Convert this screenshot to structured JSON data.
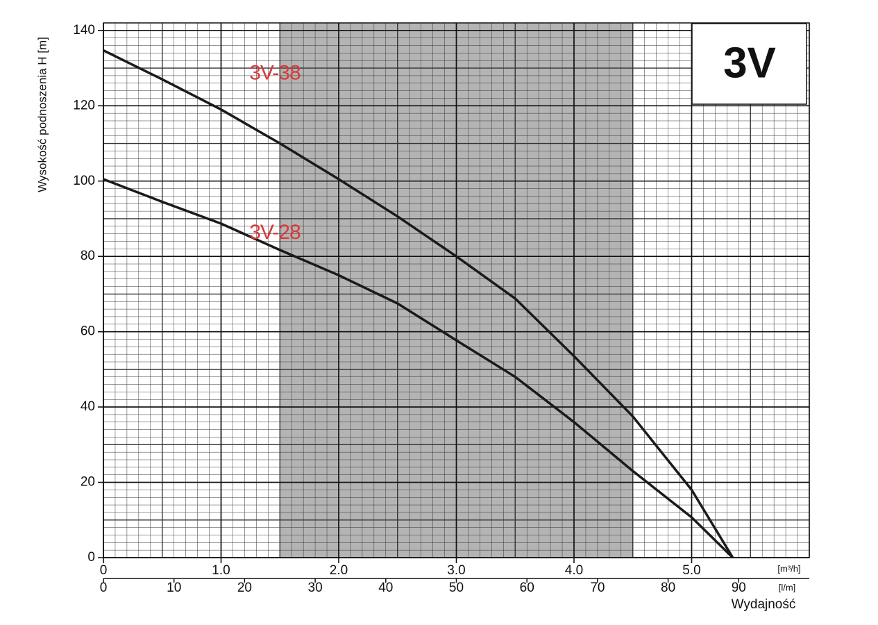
{
  "chart_data": {
    "type": "line",
    "title": "3V",
    "ylabel": "Wysokość podnoszenia H [m]",
    "xlabel": "Wydajność",
    "xunit": "[m³/h]",
    "x2unit": "[l/m]",
    "xlim": [
      0,
      6
    ],
    "ylim": [
      0,
      142
    ],
    "x2lim": [
      0,
      100
    ],
    "xticks": [
      0,
      {
        "value": 1,
        "label": "1.0"
      },
      {
        "value": 2,
        "label": "2.0"
      },
      {
        "value": 3,
        "label": "3.0"
      },
      {
        "value": 4,
        "label": "4.0"
      },
      {
        "value": 5,
        "label": "5.0"
      }
    ],
    "x2ticks": [
      0,
      10,
      20,
      30,
      40,
      50,
      60,
      70,
      80,
      90
    ],
    "yticks": [
      0,
      20,
      40,
      60,
      80,
      100,
      120,
      140
    ],
    "highlight_range": [
      1.5,
      4.5
    ],
    "highlight_color": "#b4b4b4",
    "grid": true,
    "x": [
      0,
      0.5,
      1.0,
      1.5,
      2.0,
      2.5,
      3.0,
      3.5,
      4.0,
      4.5,
      5.0,
      5.35
    ],
    "series": [
      {
        "name": "3V-38",
        "color": "#1a1a1a",
        "label_color": "#d8393a",
        "values": [
          134.7,
          127,
          119,
          110,
          100.5,
          90.6,
          80,
          68.8,
          53.5,
          37.5,
          18,
          0
        ]
      },
      {
        "name": "3V-28",
        "color": "#1a1a1a",
        "label_color": "#d8393a",
        "values": [
          100.5,
          94.5,
          88.7,
          81.7,
          75,
          67.5,
          57.7,
          48,
          36,
          23,
          10.7,
          0
        ]
      }
    ]
  }
}
